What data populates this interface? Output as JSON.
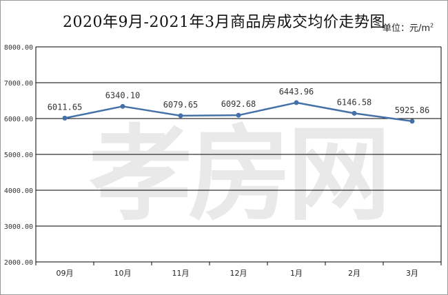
{
  "header": {
    "title": "2020年9月-2021年3月商品房成交均价走势图",
    "unit": "单位：元/m",
    "unit_sup": "2"
  },
  "watermark": "孝房网",
  "colors": {
    "line": "#4472a8",
    "grid": "#000000"
  },
  "chart_data": {
    "type": "line",
    "title": "2020年9月-2021年3月商品房成交均价走势图",
    "categories": [
      "09月",
      "10月",
      "11月",
      "12月",
      "1月",
      "2月",
      "3月"
    ],
    "series": [
      {
        "values": [
          6011.65,
          6340.1,
          6079.65,
          6092.68,
          6443.96,
          6146.58,
          5925.86
        ]
      }
    ],
    "data_labels": [
      "6011.65",
      "6340.10",
      "6079.65",
      "6092.68",
      "6443.96",
      "6146.58",
      "5925.86"
    ],
    "y_ticks": [
      "2000.00",
      "3000.00",
      "4000.00",
      "5000.00",
      "6000.00",
      "7000.00",
      "8000.00"
    ],
    "ylim": [
      2000,
      8000
    ],
    "grid": "horizontal",
    "legend": "none"
  }
}
